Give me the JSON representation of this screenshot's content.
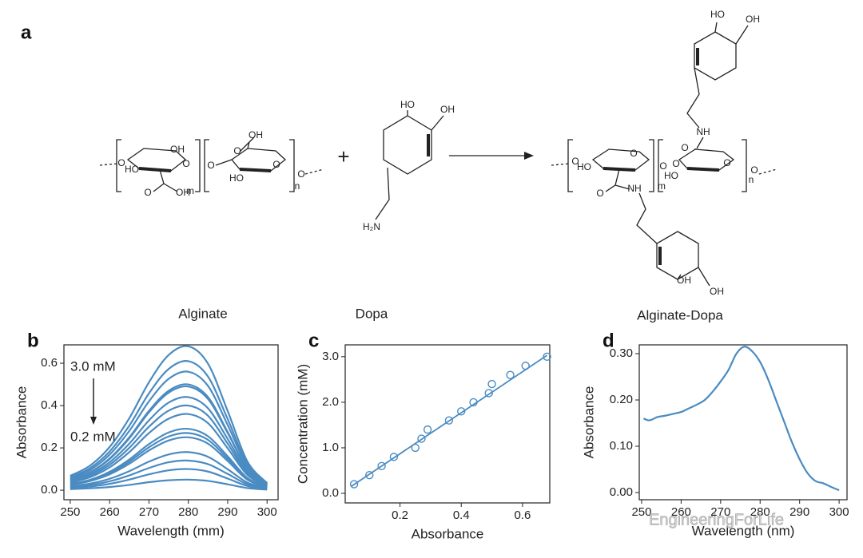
{
  "scheme": {
    "panel": "a",
    "plus": "+",
    "alginate": {
      "name": "Alginate",
      "labels": [
        "O",
        "HO",
        "OH",
        "O",
        "O",
        "OH",
        "m",
        "O",
        "O",
        "OH",
        "HO",
        "O",
        "n",
        "O"
      ]
    },
    "dopa": {
      "name": "Dopa",
      "labels": [
        "HO",
        "OH",
        "H₂N"
      ]
    },
    "product": {
      "name": "Alginate-Dopa",
      "labels": [
        "HO",
        "OH",
        "NH",
        "O",
        "O",
        "HO",
        "O",
        "O",
        "m",
        "O",
        "HO",
        "O",
        "n",
        "O",
        "O",
        "NH",
        "OH",
        "OH"
      ]
    }
  },
  "watermark": "EngineeringForLife",
  "chart_data": [
    {
      "type": "line",
      "panel": "b",
      "xlabel": "Wavelength (mm)",
      "ylabel": "Absorbance",
      "color": "#4a8bc2",
      "annotations": [
        "3.0 mM",
        "0.2 mM"
      ],
      "x": [
        250,
        255,
        260,
        265,
        270,
        275,
        280,
        285,
        290,
        295,
        300
      ],
      "series": [
        {
          "values": [
            0.068,
            0.116,
            0.204,
            0.34,
            0.51,
            0.639,
            0.68,
            0.598,
            0.374,
            0.136,
            0.034
          ]
        },
        {
          "values": [
            0.061,
            0.104,
            0.183,
            0.305,
            0.458,
            0.573,
            0.61,
            0.537,
            0.336,
            0.122,
            0.031
          ]
        },
        {
          "values": [
            0.056,
            0.095,
            0.168,
            0.28,
            0.42,
            0.526,
            0.56,
            0.493,
            0.308,
            0.112,
            0.028
          ]
        },
        {
          "values": [
            0.05,
            0.085,
            0.15,
            0.25,
            0.375,
            0.47,
            0.5,
            0.44,
            0.275,
            0.1,
            0.025
          ]
        },
        {
          "values": [
            0.049,
            0.083,
            0.147,
            0.245,
            0.368,
            0.461,
            0.49,
            0.431,
            0.27,
            0.098,
            0.025
          ]
        },
        {
          "values": [
            0.044,
            0.075,
            0.132,
            0.22,
            0.33,
            0.414,
            0.44,
            0.387,
            0.242,
            0.088,
            0.022
          ]
        },
        {
          "values": [
            0.04,
            0.068,
            0.12,
            0.2,
            0.3,
            0.376,
            0.4,
            0.352,
            0.22,
            0.08,
            0.02
          ]
        },
        {
          "values": [
            0.036,
            0.061,
            0.108,
            0.18,
            0.27,
            0.338,
            0.36,
            0.317,
            0.198,
            0.072,
            0.018
          ]
        },
        {
          "values": [
            0.029,
            0.049,
            0.087,
            0.145,
            0.218,
            0.273,
            0.29,
            0.255,
            0.16,
            0.058,
            0.015
          ]
        },
        {
          "values": [
            0.027,
            0.046,
            0.081,
            0.135,
            0.203,
            0.254,
            0.27,
            0.238,
            0.149,
            0.054,
            0.014
          ]
        },
        {
          "values": [
            0.025,
            0.043,
            0.075,
            0.125,
            0.188,
            0.235,
            0.25,
            0.22,
            0.138,
            0.05,
            0.013
          ]
        },
        {
          "values": [
            0.018,
            0.031,
            0.054,
            0.09,
            0.135,
            0.169,
            0.18,
            0.158,
            0.099,
            0.036,
            0.009
          ]
        },
        {
          "values": [
            0.014,
            0.024,
            0.042,
            0.07,
            0.105,
            0.132,
            0.14,
            0.123,
            0.077,
            0.028,
            0.007
          ]
        },
        {
          "values": [
            0.01,
            0.017,
            0.03,
            0.05,
            0.075,
            0.094,
            0.1,
            0.088,
            0.055,
            0.02,
            0.005
          ]
        },
        {
          "values": [
            0.005,
            0.009,
            0.015,
            0.025,
            0.038,
            0.047,
            0.05,
            0.044,
            0.028,
            0.01,
            0.003
          ]
        }
      ],
      "xlim": [
        248.4,
        302.8
      ],
      "xticks": [
        250,
        260,
        270,
        280,
        290,
        300
      ],
      "ylim": [
        -0.045,
        0.687
      ],
      "yticks": [
        {
          "value": 0,
          "label": "0.0"
        },
        0.2,
        0.4,
        0.6
      ]
    },
    {
      "type": "scatter",
      "panel": "c",
      "xlabel": "Absorbance",
      "ylabel": "Concentration (mM)",
      "color": "#4a8bc2",
      "x": [
        0.05,
        0.1,
        0.14,
        0.18,
        0.25,
        0.27,
        0.29,
        0.36,
        0.4,
        0.44,
        0.49,
        0.5,
        0.56,
        0.61,
        0.68
      ],
      "values": [
        0.2,
        0.4,
        0.6,
        0.8,
        1.0,
        1.2,
        1.4,
        1.6,
        1.8,
        2.0,
        2.2,
        2.4,
        2.6,
        2.8,
        3.0
      ],
      "fit": {
        "x": [
          0.04,
          0.68
        ],
        "values": [
          0.15,
          3.03
        ]
      },
      "xlim": [
        0.021,
        0.689
      ],
      "xticks": [
        0.2,
        0.4,
        0.6
      ],
      "ylim": [
        -0.21,
        3.26
      ],
      "yticks": [
        {
          "value": 0,
          "label": "0.0"
        },
        {
          "value": 1,
          "label": "1.0"
        },
        {
          "value": 2,
          "label": "2.0"
        },
        {
          "value": 3,
          "label": "3.0"
        }
      ]
    },
    {
      "type": "line",
      "panel": "d",
      "xlabel": "Wavelength (nm)",
      "ylabel": "Absorbance",
      "color": "#4a8bc2",
      "x": [
        250.5,
        252,
        254,
        256,
        258,
        260,
        262,
        264,
        266,
        268,
        270,
        272,
        274,
        276,
        278,
        280,
        282,
        284,
        286,
        288,
        290,
        292,
        294,
        296,
        298,
        300
      ],
      "series": [
        {
          "values": [
            0.16,
            0.156,
            0.163,
            0.166,
            0.17,
            0.174,
            0.182,
            0.19,
            0.2,
            0.218,
            0.24,
            0.265,
            0.3,
            0.315,
            0.305,
            0.282,
            0.245,
            0.2,
            0.155,
            0.11,
            0.072,
            0.042,
            0.025,
            0.02,
            0.012,
            0.005
          ]
        }
      ],
      "xlim": [
        249.4,
        302.0
      ],
      "xticks": [
        250,
        260,
        270,
        280,
        290,
        300
      ],
      "ylim": [
        -0.0155,
        0.319
      ],
      "yticks": [
        {
          "value": 0,
          "label": "0.00"
        },
        {
          "value": 0.1,
          "label": "0.10"
        },
        {
          "value": 0.2,
          "label": "0.20"
        },
        {
          "value": 0.3,
          "label": "0.30"
        }
      ]
    }
  ]
}
